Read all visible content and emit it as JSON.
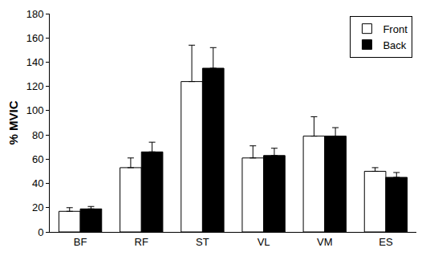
{
  "chart_data": {
    "type": "bar",
    "y_label": "% MVIC",
    "categories": [
      "BF",
      "RF",
      "ST",
      "VL",
      "VM",
      "ES"
    ],
    "series": [
      {
        "name": "Front",
        "color": "#ffffff",
        "values": [
          17,
          53,
          124,
          61,
          79,
          50
        ],
        "errors": [
          3,
          8,
          30,
          10,
          16,
          3
        ]
      },
      {
        "name": "Back",
        "color": "#000000",
        "values": [
          19,
          66,
          135,
          63,
          79,
          45
        ],
        "errors": [
          2,
          8,
          17,
          6,
          7,
          4
        ]
      }
    ],
    "ylim": [
      0,
      180
    ],
    "yticks": [
      0,
      20,
      40,
      60,
      80,
      100,
      120,
      140,
      160,
      180
    ],
    "grid": false,
    "legend": "top right"
  }
}
